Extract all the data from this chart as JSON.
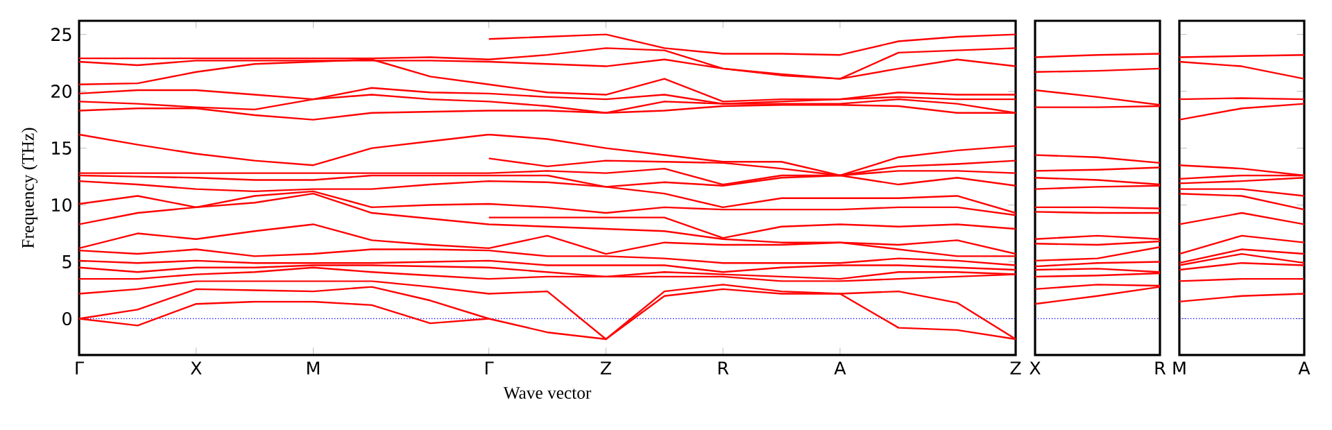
{
  "chart_data": [
    {
      "type": "line",
      "xlabel": "Wave vector",
      "ylabel": "Frequency (THz)",
      "ylim": [
        -3.2,
        26.2
      ],
      "yticks": [
        0,
        5,
        10,
        15,
        20,
        25
      ],
      "categories": [
        "Γ",
        null,
        "X",
        null,
        "M",
        null,
        null,
        "Γ",
        null,
        "Z",
        null,
        "R",
        null,
        "A",
        null,
        null,
        "Z"
      ],
      "ref_lines": [
        {
          "axis": "y",
          "value": 0,
          "color": "#0000ff",
          "line_style": "dotted"
        }
      ],
      "series": [
        {
          "color": "#ff0000",
          "values": [
            22.9,
            22.9,
            22.9,
            22.9,
            22.9,
            22.9,
            23.0,
            22.8,
            23.2,
            23.8,
            23.6,
            22.0,
            21.5,
            21.1,
            23.4,
            23.6,
            23.8
          ]
        },
        {
          "color": "#ff0000",
          "values": [
            22.6,
            22.3,
            22.7,
            22.7,
            22.7,
            22.7,
            22.7,
            22.6,
            22.4,
            22.2,
            22.8,
            22.0,
            21.4,
            21.1,
            22.0,
            22.8,
            22.2
          ]
        },
        {
          "color": "#ff0000",
          "values": [
            20.6,
            20.7,
            21.7,
            22.4,
            22.6,
            22.8,
            21.3,
            20.6,
            19.9,
            19.7,
            21.1,
            19.1,
            19.3,
            19.3,
            19.9,
            19.7,
            19.7
          ]
        },
        {
          "color": "#ff0000",
          "values": [
            19.8,
            20.1,
            20.1,
            19.7,
            19.3,
            20.3,
            19.9,
            19.8,
            19.5,
            19.3,
            19.7,
            18.9,
            19.1,
            19.3,
            19.5,
            19.3,
            19.3
          ]
        },
        {
          "color": "#ff0000",
          "values": [
            19.1,
            18.9,
            18.6,
            18.4,
            19.3,
            19.7,
            19.3,
            19.1,
            18.7,
            18.1,
            19.1,
            18.9,
            18.9,
            18.9,
            19.3,
            18.9,
            18.1
          ]
        },
        {
          "color": "#ff0000",
          "values": [
            18.3,
            18.5,
            18.5,
            17.9,
            17.5,
            18.1,
            18.2,
            18.3,
            18.3,
            18.1,
            18.3,
            18.7,
            18.8,
            18.8,
            18.7,
            18.1,
            18.1
          ]
        },
        {
          "color": "#ff0000",
          "values": [
            16.2,
            15.3,
            14.5,
            13.9,
            13.5,
            15.0,
            15.6,
            16.2,
            15.8,
            15.0,
            14.4,
            13.8,
            13.8,
            12.6,
            14.2,
            14.8,
            15.2
          ]
        },
        {
          "color": "#ff0000",
          "values": [
            12.8,
            12.8,
            12.8,
            12.8,
            12.8,
            12.8,
            12.8,
            12.8,
            13.0,
            12.8,
            13.2,
            11.8,
            12.6,
            12.6,
            13.0,
            13.0,
            12.8
          ]
        },
        {
          "color": "#ff0000",
          "values": [
            12.6,
            12.5,
            12.4,
            12.2,
            12.2,
            12.6,
            12.6,
            12.6,
            12.6,
            11.6,
            12.0,
            11.7,
            12.4,
            12.6,
            11.8,
            12.4,
            11.7
          ]
        },
        {
          "color": "#ff0000",
          "values": [
            12.1,
            11.8,
            11.4,
            11.2,
            11.4,
            11.4,
            11.8,
            12.1,
            12.0,
            11.6,
            11.0,
            9.8,
            10.6,
            10.6,
            10.6,
            10.8,
            9.3
          ]
        },
        {
          "color": "#ff0000",
          "values": [
            10.1,
            10.8,
            9.8,
            10.8,
            11.2,
            9.8,
            10.0,
            10.1,
            9.8,
            9.3,
            9.8,
            9.6,
            9.6,
            9.6,
            9.8,
            9.8,
            9.1
          ]
        },
        {
          "color": "#ff0000",
          "values": [
            8.3,
            9.3,
            9.8,
            10.2,
            11.0,
            9.3,
            8.8,
            8.3,
            8.1,
            7.9,
            7.7,
            7.0,
            6.7,
            6.7,
            6.5,
            6.9,
            5.7
          ]
        },
        {
          "color": "#ff0000",
          "values": [
            6.2,
            7.5,
            7.0,
            7.7,
            8.3,
            6.9,
            6.5,
            6.2,
            7.3,
            5.7,
            6.7,
            6.5,
            6.5,
            6.7,
            6.1,
            5.5,
            5.5
          ]
        },
        {
          "color": "#ff0000",
          "values": [
            6.0,
            5.7,
            6.1,
            5.5,
            5.7,
            6.1,
            6.1,
            6.0,
            5.5,
            5.5,
            5.3,
            4.9,
            4.9,
            4.9,
            5.3,
            5.1,
            4.7
          ]
        },
        {
          "color": "#ff0000",
          "values": [
            5.1,
            4.9,
            5.1,
            4.9,
            4.9,
            4.9,
            5.0,
            5.1,
            4.7,
            4.7,
            4.7,
            4.1,
            4.5,
            4.7,
            4.7,
            4.5,
            4.3
          ]
        },
        {
          "color": "#ff0000",
          "values": [
            4.5,
            4.1,
            4.5,
            4.5,
            4.7,
            4.7,
            4.6,
            4.5,
            4.1,
            3.7,
            4.1,
            3.9,
            3.7,
            3.5,
            4.1,
            4.1,
            3.9
          ]
        },
        {
          "color": "#ff0000",
          "values": [
            3.5,
            3.5,
            3.9,
            4.1,
            4.5,
            4.1,
            3.8,
            3.5,
            3.7,
            3.7,
            3.7,
            3.7,
            3.3,
            3.3,
            3.5,
            3.7,
            3.9
          ]
        },
        {
          "color": "#ff0000",
          "values": [
            2.2,
            2.6,
            3.3,
            3.3,
            3.3,
            3.3,
            2.8,
            2.2,
            2.4,
            -1.8,
            2.4,
            3.0,
            2.4,
            2.2,
            2.4,
            1.4,
            -1.8
          ]
        },
        {
          "color": "#ff0000",
          "values": [
            0,
            0.8,
            2.6,
            2.5,
            2.4,
            2.8,
            1.6,
            0,
            -1.2,
            -1.8,
            2.0,
            2.6,
            2.2,
            2.2,
            -0.8,
            -1.0,
            -1.8
          ]
        },
        {
          "color": "#ff0000",
          "values": [
            0,
            -0.6,
            1.3,
            1.5,
            1.5,
            1.2,
            -0.4,
            0,
            null,
            null,
            null,
            null,
            null,
            null,
            null,
            null,
            null
          ]
        },
        {
          "color": "#ff0000",
          "values": [
            null,
            null,
            null,
            null,
            null,
            null,
            null,
            24.6,
            24.8,
            25.0,
            23.8,
            23.3,
            23.3,
            23.2,
            24.4,
            24.8,
            25.0
          ]
        },
        {
          "color": "#ff0000",
          "values": [
            null,
            null,
            null,
            null,
            null,
            null,
            null,
            14.1,
            13.4,
            13.9,
            13.8,
            13.7,
            13.2,
            12.6,
            13.4,
            13.6,
            13.9
          ]
        },
        {
          "color": "#ff0000",
          "values": [
            null,
            null,
            null,
            null,
            null,
            null,
            null,
            8.9,
            8.9,
            8.9,
            8.9,
            7.1,
            8.1,
            8.3,
            8.1,
            8.3,
            7.9
          ]
        }
      ]
    },
    {
      "type": "line",
      "tick_labels": "x",
      "ylim": [
        -3.2,
        26.2
      ],
      "categories": [
        "X",
        null,
        "R"
      ],
      "ref_lines": [
        {
          "axis": "y",
          "value": 0,
          "color": "#0000ff",
          "line_style": "dotted"
        }
      ],
      "series": [
        {
          "color": "#ff0000",
          "values": [
            23.0,
            23.2,
            23.3
          ]
        },
        {
          "color": "#ff0000",
          "values": [
            21.7,
            21.8,
            22.0
          ]
        },
        {
          "color": "#ff0000",
          "values": [
            20.1,
            19.5,
            18.8
          ]
        },
        {
          "color": "#ff0000",
          "values": [
            18.6,
            18.6,
            18.7
          ]
        },
        {
          "color": "#ff0000",
          "values": [
            14.4,
            14.2,
            13.7
          ]
        },
        {
          "color": "#ff0000",
          "values": [
            13.0,
            13.1,
            13.3
          ]
        },
        {
          "color": "#ff0000",
          "values": [
            12.4,
            12.2,
            11.8
          ]
        },
        {
          "color": "#ff0000",
          "values": [
            11.4,
            11.6,
            11.7
          ]
        },
        {
          "color": "#ff0000",
          "values": [
            9.8,
            9.8,
            9.7
          ]
        },
        {
          "color": "#ff0000",
          "values": [
            9.4,
            9.3,
            9.3
          ]
        },
        {
          "color": "#ff0000",
          "values": [
            7.0,
            7.3,
            7.0
          ]
        },
        {
          "color": "#ff0000",
          "values": [
            6.6,
            6.5,
            6.8
          ]
        },
        {
          "color": "#ff0000",
          "values": [
            5.1,
            5.3,
            6.3
          ]
        },
        {
          "color": "#ff0000",
          "values": [
            4.6,
            4.9,
            5.0
          ]
        },
        {
          "color": "#ff0000",
          "values": [
            4.3,
            4.4,
            4.1
          ]
        },
        {
          "color": "#ff0000",
          "values": [
            3.7,
            3.8,
            4.0
          ]
        },
        {
          "color": "#ff0000",
          "values": [
            2.6,
            3.0,
            2.9
          ]
        },
        {
          "color": "#ff0000",
          "values": [
            1.3,
            2.0,
            2.8
          ]
        }
      ]
    },
    {
      "type": "line",
      "tick_labels": "x",
      "ylim": [
        -3.2,
        26.2
      ],
      "yticks": [
        0,
        5,
        10,
        15,
        20,
        25
      ],
      "categories": [
        "M",
        null,
        "A"
      ],
      "ref_lines": [
        {
          "axis": "y",
          "value": 0,
          "color": "#0000ff",
          "line_style": "dotted"
        }
      ],
      "series": [
        {
          "color": "#ff0000",
          "values": [
            23.0,
            23.1,
            23.2
          ]
        },
        {
          "color": "#ff0000",
          "values": [
            22.6,
            22.2,
            21.1
          ]
        },
        {
          "color": "#ff0000",
          "values": [
            19.3,
            19.4,
            19.3
          ]
        },
        {
          "color": "#ff0000",
          "values": [
            17.5,
            18.5,
            18.9
          ]
        },
        {
          "color": "#ff0000",
          "values": [
            13.5,
            13.2,
            12.6
          ]
        },
        {
          "color": "#ff0000",
          "values": [
            12.3,
            12.6,
            12.6
          ]
        },
        {
          "color": "#ff0000",
          "values": [
            11.9,
            12.1,
            12.4
          ]
        },
        {
          "color": "#ff0000",
          "values": [
            11.4,
            11.4,
            10.8
          ]
        },
        {
          "color": "#ff0000",
          "values": [
            11.0,
            10.8,
            9.6
          ]
        },
        {
          "color": "#ff0000",
          "values": [
            8.3,
            9.3,
            8.3
          ]
        },
        {
          "color": "#ff0000",
          "values": [
            5.7,
            7.3,
            6.7
          ]
        },
        {
          "color": "#ff0000",
          "values": [
            4.9,
            6.1,
            5.7
          ]
        },
        {
          "color": "#ff0000",
          "values": [
            4.7,
            5.7,
            4.9
          ]
        },
        {
          "color": "#ff0000",
          "values": [
            4.3,
            4.9,
            4.7
          ]
        },
        {
          "color": "#ff0000",
          "values": [
            3.3,
            3.5,
            3.5
          ]
        },
        {
          "color": "#ff0000",
          "values": [
            1.5,
            2.0,
            2.2
          ]
        }
      ]
    }
  ]
}
